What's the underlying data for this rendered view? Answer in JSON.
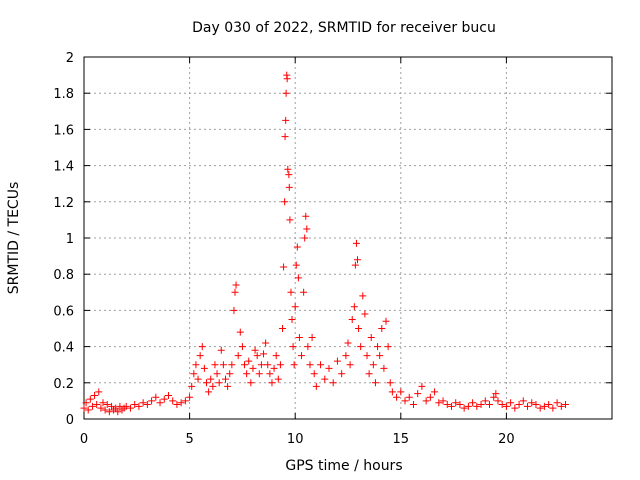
{
  "chart_data": {
    "type": "scatter",
    "title": "Day 030 of 2022, SRMTID for receiver bucu",
    "xlabel": "GPS time / hours",
    "ylabel": "SRMTID / TECUs",
    "xlim": [
      0,
      25
    ],
    "ylim": [
      0,
      2
    ],
    "xticks": [
      0,
      5,
      10,
      15,
      20
    ],
    "xtick_labels": [
      "0",
      "5",
      "10",
      "15",
      "20"
    ],
    "yticks": [
      0,
      0.2,
      0.4,
      0.6,
      0.8,
      1,
      1.2,
      1.4,
      1.6,
      1.8,
      2
    ],
    "ytick_labels": [
      "0",
      "0.2",
      "0.4",
      "0.6",
      "0.8",
      "1",
      "1.2",
      "1.4",
      "1.6",
      "1.8",
      "2"
    ],
    "grid": true,
    "marker": "+",
    "marker_color": "#ff0000",
    "series": [
      {
        "name": "SRMTID",
        "points": [
          [
            0.0,
            0.06
          ],
          [
            0.1,
            0.09
          ],
          [
            0.2,
            0.05
          ],
          [
            0.3,
            0.11
          ],
          [
            0.4,
            0.07
          ],
          [
            0.5,
            0.13
          ],
          [
            0.6,
            0.08
          ],
          [
            0.7,
            0.15
          ],
          [
            0.8,
            0.06
          ],
          [
            0.9,
            0.09
          ],
          [
            1.0,
            0.05
          ],
          [
            1.1,
            0.08
          ],
          [
            1.2,
            0.04
          ],
          [
            1.3,
            0.07
          ],
          [
            1.4,
            0.05
          ],
          [
            1.5,
            0.06
          ],
          [
            1.6,
            0.04
          ],
          [
            1.7,
            0.07
          ],
          [
            1.8,
            0.05
          ],
          [
            1.9,
            0.06
          ],
          [
            2.0,
            0.07
          ],
          [
            2.2,
            0.06
          ],
          [
            2.4,
            0.08
          ],
          [
            2.6,
            0.07
          ],
          [
            2.8,
            0.09
          ],
          [
            3.0,
            0.08
          ],
          [
            3.2,
            0.1
          ],
          [
            3.4,
            0.12
          ],
          [
            3.6,
            0.09
          ],
          [
            3.8,
            0.11
          ],
          [
            4.0,
            0.13
          ],
          [
            4.2,
            0.1
          ],
          [
            4.4,
            0.08
          ],
          [
            4.6,
            0.09
          ],
          [
            4.8,
            0.1
          ],
          [
            5.0,
            0.12
          ],
          [
            5.1,
            0.18
          ],
          [
            5.2,
            0.25
          ],
          [
            5.3,
            0.3
          ],
          [
            5.4,
            0.22
          ],
          [
            5.5,
            0.35
          ],
          [
            5.6,
            0.4
          ],
          [
            5.7,
            0.28
          ],
          [
            5.8,
            0.2
          ],
          [
            5.9,
            0.15
          ],
          [
            6.0,
            0.22
          ],
          [
            6.1,
            0.18
          ],
          [
            6.2,
            0.3
          ],
          [
            6.3,
            0.25
          ],
          [
            6.4,
            0.2
          ],
          [
            6.5,
            0.38
          ],
          [
            6.6,
            0.3
          ],
          [
            6.7,
            0.22
          ],
          [
            6.8,
            0.18
          ],
          [
            6.9,
            0.25
          ],
          [
            7.0,
            0.3
          ],
          [
            7.1,
            0.6
          ],
          [
            7.15,
            0.7
          ],
          [
            7.2,
            0.74
          ],
          [
            7.3,
            0.35
          ],
          [
            7.4,
            0.48
          ],
          [
            7.5,
            0.4
          ],
          [
            7.6,
            0.3
          ],
          [
            7.7,
            0.25
          ],
          [
            7.8,
            0.32
          ],
          [
            7.9,
            0.2
          ],
          [
            8.0,
            0.28
          ],
          [
            8.1,
            0.38
          ],
          [
            8.2,
            0.35
          ],
          [
            8.3,
            0.25
          ],
          [
            8.4,
            0.3
          ],
          [
            8.5,
            0.36
          ],
          [
            8.6,
            0.42
          ],
          [
            8.7,
            0.3
          ],
          [
            8.8,
            0.25
          ],
          [
            8.9,
            0.2
          ],
          [
            9.0,
            0.28
          ],
          [
            9.1,
            0.35
          ],
          [
            9.2,
            0.22
          ],
          [
            9.3,
            0.3
          ],
          [
            9.4,
            0.5
          ],
          [
            9.45,
            0.84
          ],
          [
            9.5,
            1.2
          ],
          [
            9.52,
            1.56
          ],
          [
            9.55,
            1.65
          ],
          [
            9.57,
            1.8
          ],
          [
            9.6,
            1.9
          ],
          [
            9.62,
            1.88
          ],
          [
            9.65,
            1.38
          ],
          [
            9.7,
            1.35
          ],
          [
            9.72,
            1.28
          ],
          [
            9.75,
            1.1
          ],
          [
            9.8,
            0.7
          ],
          [
            9.85,
            0.55
          ],
          [
            9.9,
            0.4
          ],
          [
            9.95,
            0.3
          ],
          [
            10.0,
            0.62
          ],
          [
            10.05,
            0.85
          ],
          [
            10.1,
            0.95
          ],
          [
            10.15,
            0.78
          ],
          [
            10.2,
            0.45
          ],
          [
            10.3,
            0.35
          ],
          [
            10.4,
            0.7
          ],
          [
            10.45,
            1.0
          ],
          [
            10.5,
            1.12
          ],
          [
            10.55,
            1.05
          ],
          [
            10.6,
            0.4
          ],
          [
            10.7,
            0.3
          ],
          [
            10.8,
            0.45
          ],
          [
            10.9,
            0.25
          ],
          [
            11.0,
            0.18
          ],
          [
            11.2,
            0.3
          ],
          [
            11.4,
            0.22
          ],
          [
            11.6,
            0.28
          ],
          [
            11.8,
            0.2
          ],
          [
            12.0,
            0.32
          ],
          [
            12.2,
            0.25
          ],
          [
            12.4,
            0.35
          ],
          [
            12.5,
            0.42
          ],
          [
            12.6,
            0.3
          ],
          [
            12.7,
            0.55
          ],
          [
            12.8,
            0.62
          ],
          [
            12.85,
            0.85
          ],
          [
            12.9,
            0.97
          ],
          [
            12.95,
            0.88
          ],
          [
            13.0,
            0.5
          ],
          [
            13.1,
            0.4
          ],
          [
            13.2,
            0.68
          ],
          [
            13.3,
            0.58
          ],
          [
            13.4,
            0.35
          ],
          [
            13.5,
            0.25
          ],
          [
            13.6,
            0.45
          ],
          [
            13.7,
            0.3
          ],
          [
            13.8,
            0.2
          ],
          [
            13.9,
            0.4
          ],
          [
            14.0,
            0.35
          ],
          [
            14.1,
            0.5
          ],
          [
            14.2,
            0.28
          ],
          [
            14.3,
            0.54
          ],
          [
            14.4,
            0.4
          ],
          [
            14.5,
            0.2
          ],
          [
            14.6,
            0.15
          ],
          [
            14.8,
            0.12
          ],
          [
            15.0,
            0.15
          ],
          [
            15.2,
            0.1
          ],
          [
            15.4,
            0.12
          ],
          [
            15.6,
            0.08
          ],
          [
            15.8,
            0.14
          ],
          [
            16.0,
            0.18
          ],
          [
            16.2,
            0.1
          ],
          [
            16.4,
            0.12
          ],
          [
            16.6,
            0.15
          ],
          [
            16.8,
            0.09
          ],
          [
            17.0,
            0.1
          ],
          [
            17.2,
            0.08
          ],
          [
            17.4,
            0.07
          ],
          [
            17.6,
            0.09
          ],
          [
            17.8,
            0.08
          ],
          [
            18.0,
            0.06
          ],
          [
            18.2,
            0.07
          ],
          [
            18.4,
            0.09
          ],
          [
            18.6,
            0.07
          ],
          [
            18.8,
            0.08
          ],
          [
            19.0,
            0.1
          ],
          [
            19.2,
            0.08
          ],
          [
            19.4,
            0.12
          ],
          [
            19.5,
            0.14
          ],
          [
            19.6,
            0.1
          ],
          [
            19.8,
            0.08
          ],
          [
            20.0,
            0.07
          ],
          [
            20.2,
            0.09
          ],
          [
            20.4,
            0.06
          ],
          [
            20.6,
            0.08
          ],
          [
            20.8,
            0.1
          ],
          [
            21.0,
            0.07
          ],
          [
            21.2,
            0.09
          ],
          [
            21.4,
            0.08
          ],
          [
            21.6,
            0.06
          ],
          [
            21.8,
            0.07
          ],
          [
            22.0,
            0.08
          ],
          [
            22.2,
            0.06
          ],
          [
            22.4,
            0.09
          ],
          [
            22.6,
            0.07
          ],
          [
            22.8,
            0.08
          ]
        ]
      }
    ]
  }
}
